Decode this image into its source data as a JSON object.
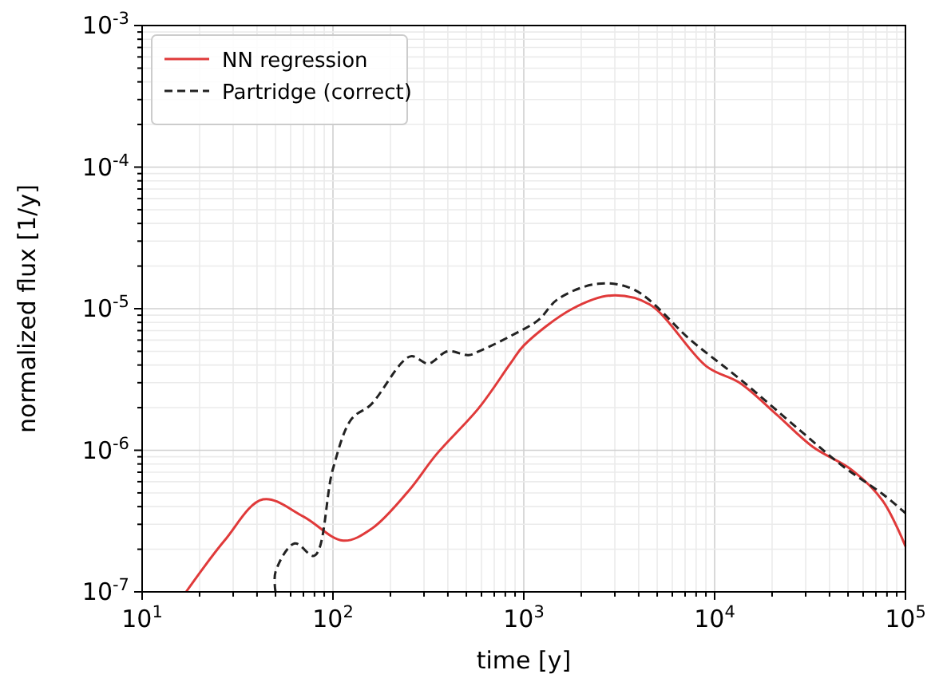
{
  "chart_data": {
    "type": "line",
    "xlabel": "time [y]",
    "ylabel": "normalized flux [1/y]",
    "log": "xy",
    "grid": true,
    "legend": "top left",
    "xlim": [
      10,
      100000
    ],
    "ylim": [
      1e-07,
      0.001
    ],
    "xticks": [
      {
        "value": 10,
        "label": "10$^{1}$"
      },
      {
        "value": 20,
        "label": null
      },
      {
        "value": 30,
        "label": null
      },
      {
        "value": 40,
        "label": null
      },
      {
        "value": 50,
        "label": null
      },
      {
        "value": 60,
        "label": null
      },
      {
        "value": 70,
        "label": null
      },
      {
        "value": 80,
        "label": null
      },
      {
        "value": 90,
        "label": null
      },
      {
        "value": 100,
        "label": "10$^{2}$"
      },
      {
        "value": 200,
        "label": null
      },
      {
        "value": 300,
        "label": null
      },
      {
        "value": 400,
        "label": null
      },
      {
        "value": 500,
        "label": null
      },
      {
        "value": 600,
        "label": null
      },
      {
        "value": 700,
        "label": null
      },
      {
        "value": 800,
        "label": null
      },
      {
        "value": 900,
        "label": null
      },
      {
        "value": 1000,
        "label": "10$^{3}$"
      },
      {
        "value": 2000,
        "label": null
      },
      {
        "value": 3000,
        "label": null
      },
      {
        "value": 4000,
        "label": null
      },
      {
        "value": 5000,
        "label": null
      },
      {
        "value": 6000,
        "label": null
      },
      {
        "value": 7000,
        "label": null
      },
      {
        "value": 8000,
        "label": null
      },
      {
        "value": 9000,
        "label": null
      },
      {
        "value": 10000,
        "label": "10$^{4}$"
      },
      {
        "value": 20000,
        "label": null
      },
      {
        "value": 30000,
        "label": null
      },
      {
        "value": 40000,
        "label": null
      },
      {
        "value": 50000,
        "label": null
      },
      {
        "value": 60000,
        "label": null
      },
      {
        "value": 70000,
        "label": null
      },
      {
        "value": 80000,
        "label": null
      },
      {
        "value": 90000,
        "label": null
      },
      {
        "value": 100000,
        "label": "10$^{5}$"
      }
    ],
    "yticks": [
      {
        "value": 1e-07,
        "label": "10$^{-7}$"
      },
      {
        "value": 2e-07,
        "label": null
      },
      {
        "value": 3e-07,
        "label": null
      },
      {
        "value": 4e-07,
        "label": null
      },
      {
        "value": 5e-07,
        "label": null
      },
      {
        "value": 6e-07,
        "label": null
      },
      {
        "value": 7e-07,
        "label": null
      },
      {
        "value": 8e-07,
        "label": null
      },
      {
        "value": 9e-07,
        "label": null
      },
      {
        "value": 1e-06,
        "label": "10$^{-6}$"
      },
      {
        "value": 2e-06,
        "label": null
      },
      {
        "value": 3e-06,
        "label": null
      },
      {
        "value": 4e-06,
        "label": null
      },
      {
        "value": 5e-06,
        "label": null
      },
      {
        "value": 6e-06,
        "label": null
      },
      {
        "value": 7e-06,
        "label": null
      },
      {
        "value": 8e-06,
        "label": null
      },
      {
        "value": 9e-06,
        "label": null
      },
      {
        "value": 1e-05,
        "label": "10$^{-5}$"
      },
      {
        "value": 2e-05,
        "label": null
      },
      {
        "value": 3e-05,
        "label": null
      },
      {
        "value": 4e-05,
        "label": null
      },
      {
        "value": 5e-05,
        "label": null
      },
      {
        "value": 6e-05,
        "label": null
      },
      {
        "value": 7e-05,
        "label": null
      },
      {
        "value": 8e-05,
        "label": null
      },
      {
        "value": 9e-05,
        "label": null
      },
      {
        "value": 0.0001,
        "label": "10$^{-4}$"
      },
      {
        "value": 0.0002,
        "label": null
      },
      {
        "value": 0.0003,
        "label": null
      },
      {
        "value": 0.0004,
        "label": null
      },
      {
        "value": 0.0005,
        "label": null
      },
      {
        "value": 0.0006,
        "label": null
      },
      {
        "value": 0.0007,
        "label": null
      },
      {
        "value": 0.0008,
        "label": null
      },
      {
        "value": 0.0009,
        "label": null
      },
      {
        "value": 0.001,
        "label": "10$^{-3}$"
      }
    ],
    "series": [
      {
        "name": "NN regression",
        "color": "#e03a3a",
        "line_style": "solid",
        "x": [
          17,
          27,
          43,
          70,
          113,
          160,
          250,
          347,
          583,
          851,
          1000,
          1800,
          2880,
          4570,
          9100,
          13500,
          21000,
          32600,
          52800,
          76000,
          100000
        ],
        "values": [
          1e-07,
          2.3e-07,
          4.5e-07,
          3.4e-07,
          2.3e-07,
          2.8e-07,
          5.2e-07,
          9.3e-07,
          2e-06,
          4.1e-06,
          5.5e-06,
          1e-05,
          1.24e-05,
          1.07e-05,
          3.9e-06,
          3e-06,
          1.8e-06,
          1.06e-06,
          7.2e-07,
          4.4e-07,
          2.1e-07
        ]
      },
      {
        "name": "Partridge (correct)",
        "color": "#222222",
        "line_style": "dashed",
        "x": [
          50,
          50,
          63,
          80,
          100,
          125,
          158,
          254,
          316,
          398,
          513,
          583,
          851,
          1190,
          1510,
          2450,
          3800,
          7600,
          13500,
          27700,
          46500,
          76000,
          100000
        ],
        "values": [
          1e-07,
          1.38e-07,
          2.2e-07,
          1.8e-07,
          7.4e-07,
          1.66e-06,
          2.1e-06,
          4.6e-06,
          4.1e-06,
          5e-06,
          4.7e-06,
          5e-06,
          6.4e-06,
          8.3e-06,
          1.17e-05,
          1.5e-05,
          1.36e-05,
          5.9e-06,
          3.2e-06,
          1.4e-06,
          7.8e-07,
          4.9e-07,
          3.6e-07
        ]
      }
    ]
  }
}
